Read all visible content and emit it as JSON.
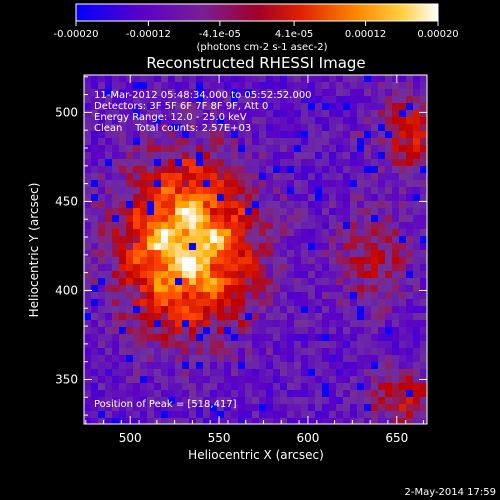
{
  "chart_data": {
    "type": "heatmap",
    "title": "Reconstructed RHESSI Image",
    "xlabel": "Heliocentric X (arcsec)",
    "ylabel": "Heliocentric Y (arcsec)",
    "xlim": [
      474,
      667
    ],
    "ylim": [
      325,
      521
    ],
    "x_ticks": [
      500,
      550,
      600,
      650
    ],
    "y_ticks": [
      350,
      400,
      450,
      500
    ],
    "colorbar": {
      "range": [
        -0.0002,
        0.0002
      ],
      "tick_values": [
        -0.0002,
        -0.00012,
        -4.1e-05,
        4.1e-05,
        0.00012,
        0.0002
      ],
      "tick_labels": [
        "-0.00020",
        "-0.00012",
        "-4.1e-05",
        "4.1e-05",
        "0.00012",
        "0.00020"
      ],
      "units_label": "(photons cm-2 s-1 asec-2)"
    },
    "annotations": {
      "time_range": "11-Mar-2012 05:48:34.000 to 05:52:52.000",
      "detectors": "Detectors: 3F 5F 6F 7F 8F 9F, Att 0",
      "energy": "Energy Range: 12.0 - 25.0 keV",
      "method": "Clean    Total counts: 2.57E+03",
      "peak": "Position of Peak = [518,417]"
    },
    "peak_position": [
      518,
      417
    ],
    "grid": false,
    "legend": "none"
  },
  "footer": {
    "timestamp": "2-May-2014 17:59"
  },
  "colors": {
    "background": "#000000",
    "text": "#ffffff",
    "colormap": [
      "#0000ff",
      "#5a00c8",
      "#7030a0",
      "#c00000",
      "#ff4000",
      "#ffb000",
      "#ffffff"
    ]
  }
}
